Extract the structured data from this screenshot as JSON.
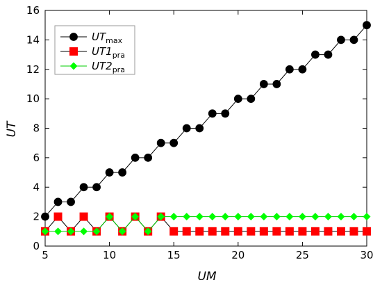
{
  "chart_data": {
    "type": "line",
    "title": "",
    "xlabel": "UM",
    "ylabel": "UT",
    "xlim": [
      5,
      30
    ],
    "ylim": [
      0,
      16
    ],
    "xticks": [
      5,
      10,
      15,
      20,
      25,
      30
    ],
    "yticks": [
      0,
      2,
      4,
      6,
      8,
      10,
      12,
      14,
      16
    ],
    "grid": false,
    "legend_position": "top-left",
    "series": [
      {
        "name": "UTmax",
        "label_main": "UT",
        "label_sub": "max",
        "color": "#000000",
        "marker": "circle",
        "x": [
          5,
          6,
          7,
          8,
          9,
          10,
          11,
          12,
          13,
          14,
          15,
          16,
          17,
          18,
          19,
          20,
          21,
          22,
          23,
          24,
          25,
          26,
          27,
          28,
          29,
          30
        ],
        "values": [
          2,
          3,
          3,
          4,
          4,
          5,
          5,
          6,
          6,
          7,
          7,
          8,
          8,
          9,
          9,
          10,
          10,
          11,
          11,
          12,
          12,
          13,
          13,
          14,
          14,
          15
        ]
      },
      {
        "name": "UT1pra",
        "label_main": "UT1",
        "label_sub": "pra",
        "color": "#ff0000",
        "marker": "square",
        "x": [
          5,
          6,
          7,
          8,
          9,
          10,
          11,
          12,
          13,
          14,
          15,
          16,
          17,
          18,
          19,
          20,
          21,
          22,
          23,
          24,
          25,
          26,
          27,
          28,
          29,
          30
        ],
        "values": [
          1,
          2,
          1,
          2,
          1,
          2,
          1,
          2,
          1,
          2,
          1,
          1,
          1,
          1,
          1,
          1,
          1,
          1,
          1,
          1,
          1,
          1,
          1,
          1,
          1,
          1
        ]
      },
      {
        "name": "UT2pra",
        "label_main": "UT2",
        "label_sub": "pra",
        "color": "#00ff00",
        "marker": "diamond",
        "x": [
          5,
          6,
          7,
          8,
          9,
          10,
          11,
          12,
          13,
          14,
          15,
          16,
          17,
          18,
          19,
          20,
          21,
          22,
          23,
          24,
          25,
          26,
          27,
          28,
          29,
          30
        ],
        "values": [
          1,
          1,
          1,
          1,
          1,
          2,
          1,
          2,
          1,
          2,
          2,
          2,
          2,
          2,
          2,
          2,
          2,
          2,
          2,
          2,
          2,
          2,
          2,
          2,
          2,
          2
        ]
      }
    ]
  }
}
